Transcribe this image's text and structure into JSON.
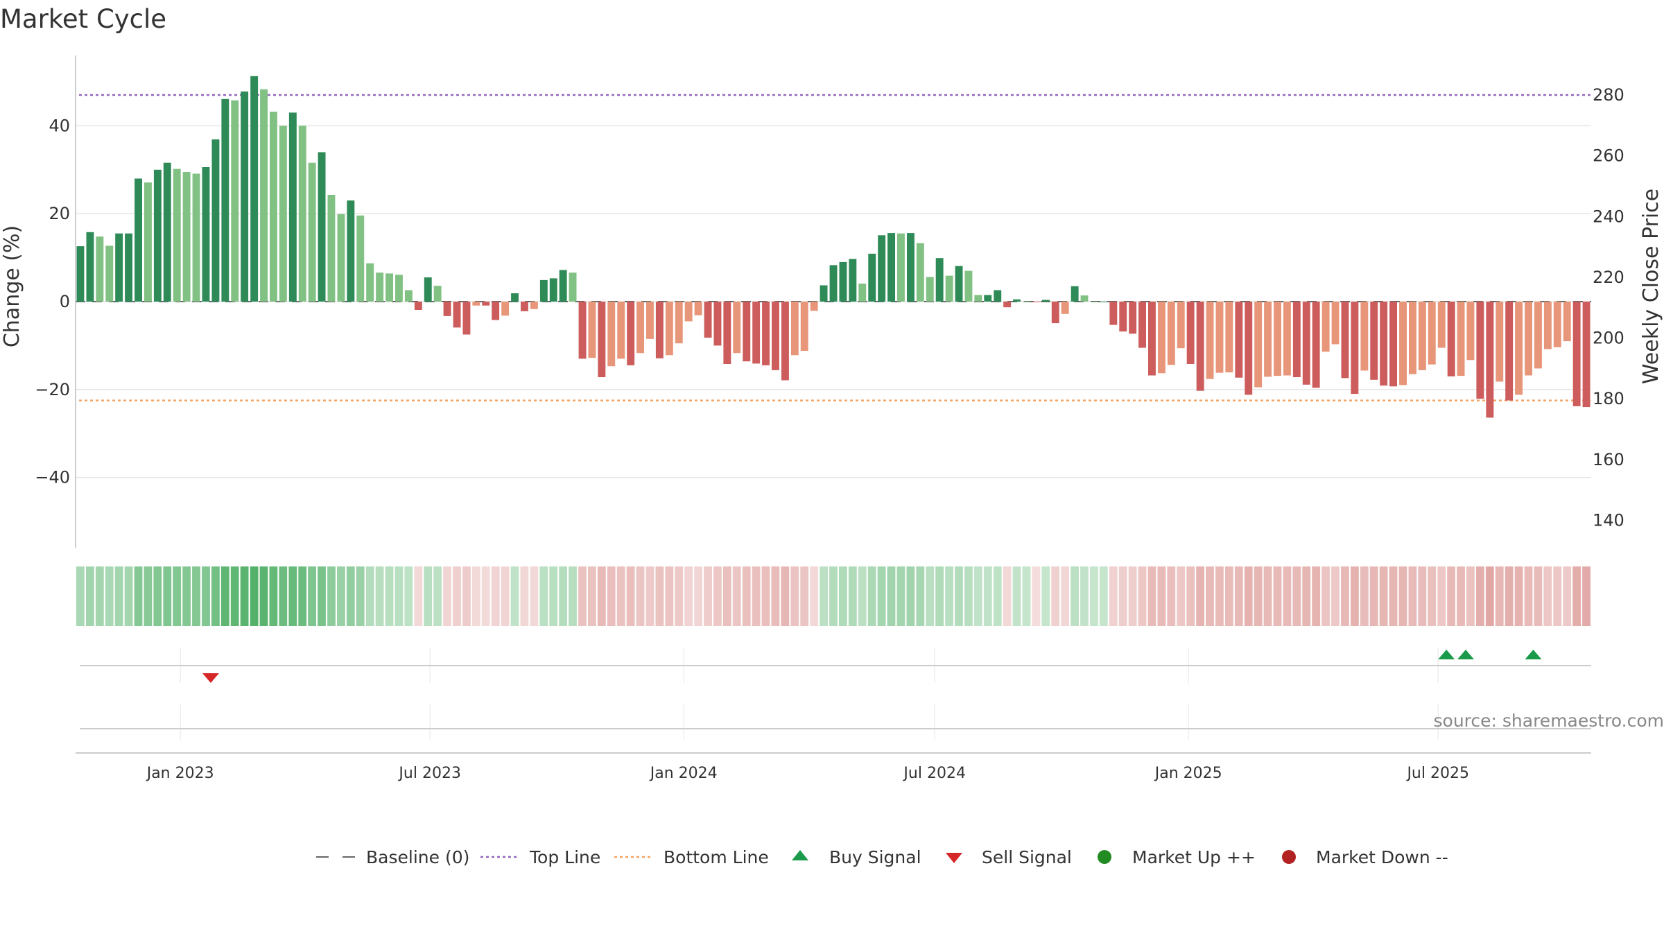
{
  "chart_data": {
    "type": "bar",
    "title": "Market Cycle",
    "ylabel_left": "Change (%)",
    "ylabel_right": "Weekly Close Price",
    "ylim_left": [
      -56,
      56
    ],
    "ylim_right": [
      131,
      293
    ],
    "yticks_left": [
      40,
      20,
      0,
      -20,
      -40
    ],
    "yticks_left_labels": [
      "40",
      "20",
      "0",
      "−20",
      "−40"
    ],
    "yticks_right": [
      280,
      260,
      240,
      220,
      200,
      180,
      160,
      140
    ],
    "yticks_right_labels": [
      "280",
      "260",
      "240",
      "220",
      "200",
      "180",
      "160",
      "140"
    ],
    "x_start": "2022-10-17",
    "x_end": "2025-10-20",
    "xticks": [
      {
        "date": "2023-01-01",
        "label": "Jan 2023"
      },
      {
        "date": "2023-07-01",
        "label": "Jul 2023"
      },
      {
        "date": "2024-01-01",
        "label": "Jan 2024"
      },
      {
        "date": "2024-07-01",
        "label": "Jul 2024"
      },
      {
        "date": "2025-01-01",
        "label": "Jan 2025"
      },
      {
        "date": "2025-07-01",
        "label": "Jul 2025"
      }
    ],
    "top_line": 47,
    "bottom_line": -22.5,
    "baseline": 0,
    "bars": [
      12.6,
      15.8,
      14.8,
      12.7,
      15.5,
      15.5,
      28.0,
      27.1,
      30.0,
      31.6,
      30.2,
      29.5,
      29.1,
      30.6,
      36.9,
      46.1,
      45.8,
      47.8,
      51.3,
      48.3,
      43.2,
      40.0,
      43.0,
      40.0,
      31.6,
      34.0,
      24.3,
      19.9,
      23.0,
      19.6,
      8.7,
      6.6,
      6.4,
      6.1,
      2.6,
      -1.9,
      5.5,
      3.6,
      -3.3,
      -5.9,
      -7.5,
      -0.9,
      -0.9,
      -4.2,
      -3.2,
      1.9,
      -2.2,
      -1.7,
      4.9,
      5.3,
      7.2,
      6.6,
      -13.0,
      -12.8,
      -17.2,
      -14.7,
      -13.0,
      -14.5,
      -11.7,
      -8.5,
      -12.9,
      -12.2,
      -9.5,
      -4.5,
      -3.1,
      -8.2,
      -10.0,
      -14.2,
      -11.7,
      -13.6,
      -14.1,
      -14.5,
      -15.6,
      -17.9,
      -12.2,
      -11.2,
      -2.1,
      3.7,
      8.3,
      9.0,
      9.7,
      4.1,
      10.9,
      15.1,
      15.6,
      15.5,
      15.6,
      13.3,
      5.6,
      9.9,
      5.9,
      8.1,
      7.0,
      1.5,
      1.5,
      2.6,
      -1.3,
      0.5,
      0.1,
      -0.1,
      0.4,
      -4.9,
      -2.8,
      3.5,
      1.4,
      0.0,
      0.0,
      -5.3,
      -6.8,
      -7.3,
      -10.5,
      -16.8,
      -16.3,
      -14.4,
      -10.6,
      -14.2,
      -20.3,
      -17.6,
      -16.2,
      -16.1,
      -17.3,
      -21.2,
      -19.5,
      -17.1,
      -16.9,
      -16.8,
      -17.2,
      -18.9,
      -19.6,
      -11.4,
      -9.7,
      -17.4,
      -21.0,
      -15.7,
      -17.8,
      -19.1,
      -19.3,
      -19.0,
      -16.5,
      -15.6,
      -14.3,
      -10.5,
      -17.0,
      -16.9,
      -13.3,
      -22.1,
      -26.4,
      -18.2,
      -22.5,
      -21.2,
      -16.8,
      -15.2,
      -10.8,
      -10.4,
      -9.0,
      -23.8,
      -24.0
    ],
    "signals": {
      "buy": [
        "2025-07-07",
        "2025-07-21",
        "2025-09-08"
      ],
      "sell": [
        "2023-01-23"
      ],
      "market_up": [],
      "market_down": []
    },
    "legend": [
      {
        "key": "baseline",
        "label": "Baseline (0)"
      },
      {
        "key": "top",
        "label": "Top Line"
      },
      {
        "key": "bottom",
        "label": "Bottom Line"
      },
      {
        "key": "buy",
        "label": "Buy Signal"
      },
      {
        "key": "sell",
        "label": "Sell Signal"
      },
      {
        "key": "up",
        "label": "Market Up ++"
      },
      {
        "key": "down",
        "label": "Market Down --"
      }
    ],
    "source": "source: sharemaestro.com"
  },
  "colors": {
    "pos_dark": "#2e8b57",
    "pos_light": "#82c184",
    "neg_dark": "#cd5c5c",
    "neg_light": "#e8967a",
    "top_line": "#9467bd",
    "bottom_line": "#f4a261",
    "baseline": "#666666",
    "buy": "#1a9a4a",
    "sell": "#d62728",
    "up": "#228b22",
    "down": "#b22222",
    "grid": "#e6e6e6",
    "axis": "#bbbbbb"
  }
}
